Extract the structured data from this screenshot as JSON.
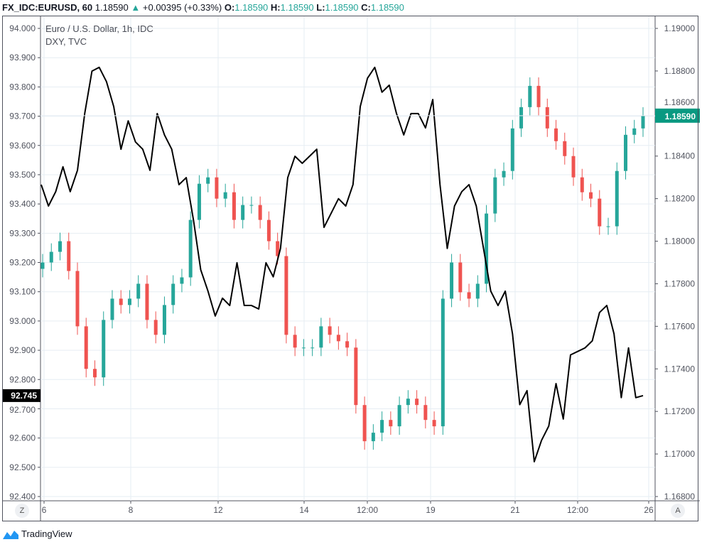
{
  "header": {
    "symbol": "FX_IDC:EURUSD, 60",
    "last": "1.18590",
    "change": "+0.00395 (+0.33%)",
    "o_label": "O:",
    "o": "1.18590",
    "h_label": "H:",
    "h": "1.18590",
    "l_label": "L:",
    "l": "1.18590",
    "c_label": "C:",
    "c": "1.18590"
  },
  "legend": {
    "main": "Euro / U.S. Dollar, 1h, IDC",
    "overlay": "DXY, TVC"
  },
  "buttons": {
    "left": "Z",
    "right": "A"
  },
  "footer": {
    "brand": "TradingView"
  },
  "colors": {
    "up": "#26a69a",
    "down": "#ef5350",
    "line": "#000000",
    "grid": "#e6edf3",
    "price_tag": "#089981"
  },
  "chart_data": {
    "type": "candlestick+line",
    "x_tick_labels": [
      "6",
      "8",
      "12",
      "14",
      "12:00",
      "19",
      "21",
      "12:00",
      "26"
    ],
    "left_axis": {
      "series": "DXY",
      "ylim": [
        92.4,
        94.0
      ],
      "ticks": [
        "94.000",
        "93.900",
        "93.800",
        "93.700",
        "93.600",
        "93.500",
        "93.400",
        "93.300",
        "93.200",
        "93.100",
        "93.000",
        "92.900",
        "92.800",
        "92.700",
        "92.600",
        "92.500",
        "92.400"
      ],
      "last_label": "92.745"
    },
    "right_axis": {
      "series": "EURUSD",
      "ylim": [
        1.168,
        1.19
      ],
      "ticks": [
        "1.19000",
        "1.18800",
        "1.18600",
        "1.18400",
        "1.18200",
        "1.18000",
        "1.17800",
        "1.17600",
        "1.17400",
        "1.17200",
        "1.17000",
        "1.16800"
      ],
      "last_label": "1.18590"
    },
    "grid": true,
    "eurusd_close": [
      1.179,
      1.1795,
      1.18,
      1.1786,
      1.176,
      1.174,
      1.1736,
      1.1763,
      1.1773,
      1.177,
      1.1773,
      1.178,
      1.1763,
      1.1756,
      1.177,
      1.178,
      1.1783,
      1.181,
      1.1827,
      1.183,
      1.182,
      1.1823,
      1.181,
      1.1817,
      1.1817,
      1.181,
      1.18,
      1.1793,
      1.1756,
      1.175,
      1.175,
      1.175,
      1.176,
      1.1756,
      1.1753,
      1.175,
      1.1723,
      1.1706,
      1.171,
      1.1716,
      1.1713,
      1.1723,
      1.1726,
      1.1723,
      1.1716,
      1.1713,
      1.1773,
      1.179,
      1.1776,
      1.1773,
      1.178,
      1.1813,
      1.183,
      1.1833,
      1.1853,
      1.1863,
      1.1873,
      1.1863,
      1.1853,
      1.1847,
      1.184,
      1.183,
      1.1823,
      1.182,
      1.1807,
      1.1807,
      1.1833,
      1.185,
      1.1853,
      1.1859
    ],
    "dxy": [
      93.466,
      93.393,
      93.442,
      93.527,
      93.442,
      93.515,
      93.709,
      93.854,
      93.867,
      93.818,
      93.733,
      93.587,
      93.684,
      93.612,
      93.587,
      93.515,
      93.709,
      93.636,
      93.587,
      93.466,
      93.49,
      93.345,
      93.175,
      93.102,
      93.017,
      93.078,
      93.053,
      93.199,
      93.053,
      93.053,
      93.041,
      93.199,
      93.151,
      93.248,
      93.49,
      93.563,
      93.539,
      93.563,
      93.587,
      93.32,
      93.369,
      93.418,
      93.393,
      93.466,
      93.733,
      93.83,
      93.867,
      93.782,
      93.806,
      93.709,
      93.636,
      93.709,
      93.709,
      93.66,
      93.757,
      93.466,
      93.248,
      93.393,
      93.442,
      93.466,
      93.393,
      93.248,
      93.102,
      93.053,
      93.102,
      92.956,
      92.714,
      92.762,
      92.519,
      92.592,
      92.641,
      92.786,
      92.665,
      92.884,
      92.896,
      92.908,
      92.932,
      93.029,
      93.053,
      92.956,
      92.738,
      92.908,
      92.738,
      92.745
    ]
  }
}
